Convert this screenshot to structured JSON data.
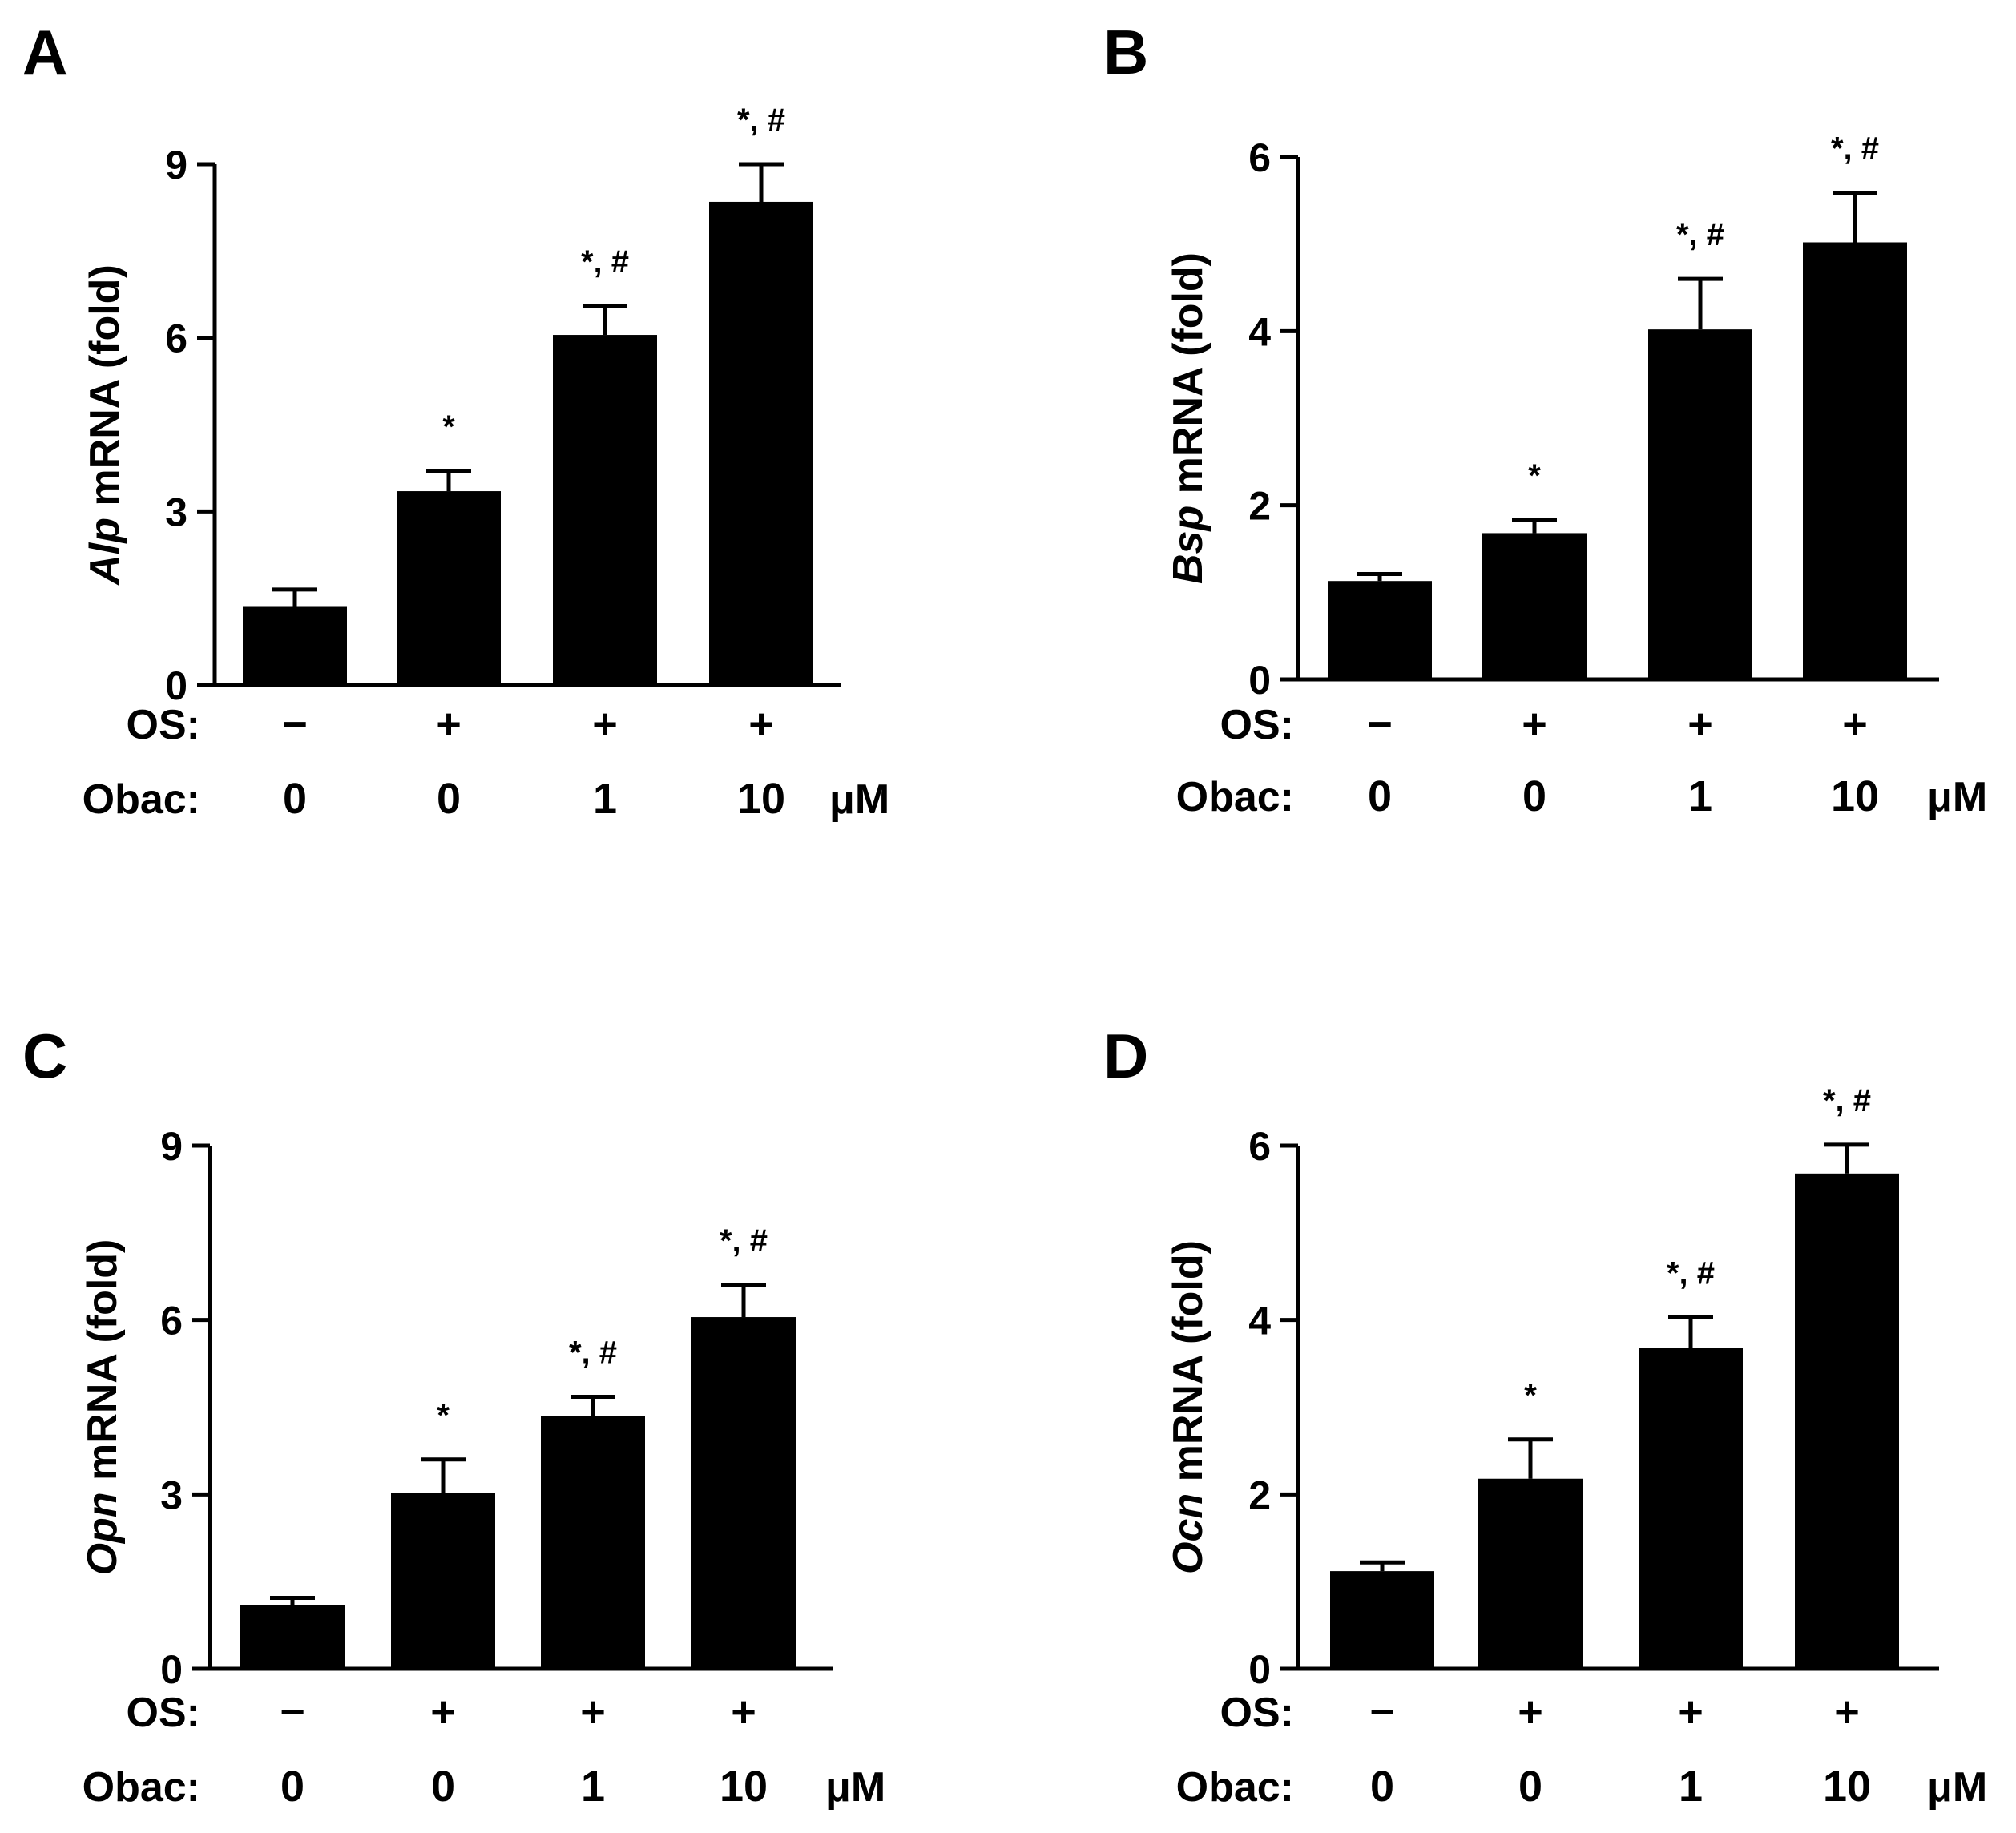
{
  "chart_data": [
    {
      "type": "bar",
      "panel": "A",
      "ylabel_gene": "Alp",
      "ylabel_rest": " mRNA (fold)",
      "ylim": [
        0,
        9
      ],
      "yticks": [
        "0",
        "3",
        "6",
        "9"
      ],
      "categories": [
        "OS:− Obac:0",
        "OS:+ Obac:0",
        "OS:+ Obac:1",
        "OS:+ Obac:10"
      ],
      "os": [
        "−",
        "+",
        "+",
        "+"
      ],
      "obac": [
        "0",
        "0",
        "1",
        "10"
      ],
      "values": [
        1.35,
        3.35,
        6.05,
        8.35
      ],
      "errors": [
        0.3,
        0.35,
        0.5,
        0.65
      ],
      "significance": [
        "",
        "*",
        "*, #",
        "*, #"
      ]
    },
    {
      "type": "bar",
      "panel": "B",
      "ylabel_gene": "Bsp",
      "ylabel_rest": " mRNA (fold)",
      "ylim": [
        0,
        6
      ],
      "yticks": [
        "0",
        "2",
        "4",
        "6"
      ],
      "categories": [
        "OS:− Obac:0",
        "OS:+ Obac:0",
        "OS:+ Obac:1",
        "OS:+ Obac:10"
      ],
      "os": [
        "−",
        "+",
        "+",
        "+"
      ],
      "obac": [
        "0",
        "0",
        "1",
        "10"
      ],
      "values": [
        1.13,
        1.68,
        4.02,
        5.02
      ],
      "errors": [
        0.08,
        0.15,
        0.58,
        0.57
      ],
      "significance": [
        "",
        "*",
        "*, #",
        "*, #"
      ]
    },
    {
      "type": "bar",
      "panel": "C",
      "ylabel_gene": "Opn",
      "ylabel_rest": " mRNA (fold)",
      "ylim": [
        0,
        9
      ],
      "yticks": [
        "0",
        "3",
        "6",
        "9"
      ],
      "categories": [
        "OS:− Obac:0",
        "OS:+ Obac:0",
        "OS:+ Obac:1",
        "OS:+ Obac:10"
      ],
      "os": [
        "−",
        "+",
        "+",
        "+"
      ],
      "obac": [
        "0",
        "0",
        "1",
        "10"
      ],
      "values": [
        1.1,
        3.02,
        4.35,
        6.05
      ],
      "errors": [
        0.12,
        0.58,
        0.33,
        0.55
      ],
      "significance": [
        "",
        "*",
        "*, #",
        "*, #"
      ]
    },
    {
      "type": "bar",
      "panel": "D",
      "ylabel_gene": "Ocn",
      "ylabel_rest": " mRNA (fold)",
      "ylim": [
        0,
        6
      ],
      "yticks": [
        "0",
        "2",
        "4",
        "6"
      ],
      "categories": [
        "OS:− Obac:0",
        "OS:+ Obac:0",
        "OS:+ Obac:1",
        "OS:+ Obac:10"
      ],
      "os": [
        "−",
        "+",
        "+",
        "+"
      ],
      "obac": [
        "0",
        "0",
        "1",
        "10"
      ],
      "values": [
        1.12,
        2.18,
        3.68,
        5.68
      ],
      "errors": [
        0.1,
        0.45,
        0.35,
        0.33
      ],
      "significance": [
        "",
        "*",
        "*, #",
        "*, #"
      ]
    }
  ],
  "row_labels": {
    "os": "OS:",
    "obac": "Obac:",
    "unit": "μM"
  }
}
